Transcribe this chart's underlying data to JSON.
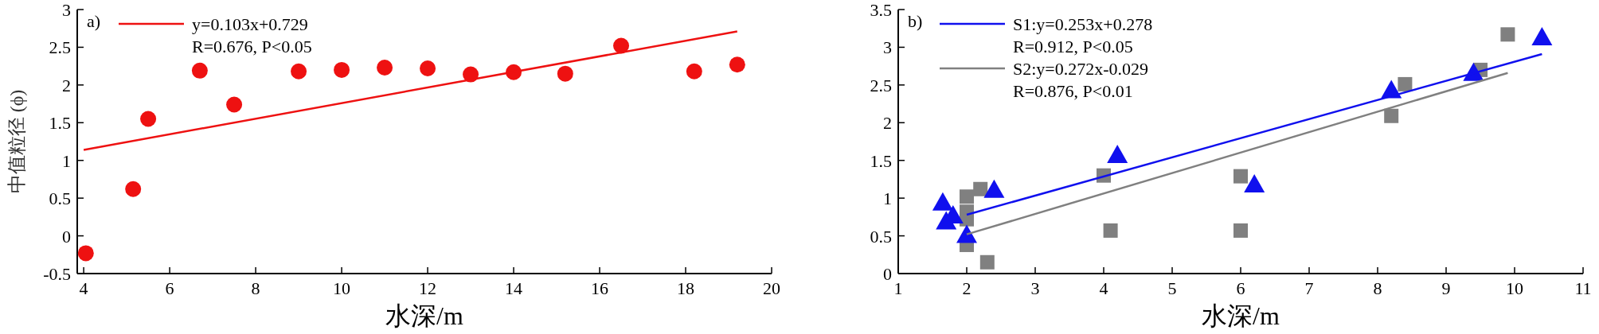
{
  "chart_data": [
    {
      "type": "scatter",
      "title": "a)",
      "xlabel": "水深/m",
      "ylabel": "中值粒径 (ϕ)",
      "xlim": [
        3.85,
        20
      ],
      "ylim": [
        -0.5,
        3
      ],
      "xticks": [
        4,
        6,
        8,
        10,
        12,
        14,
        16,
        18,
        20
      ],
      "yticks": [
        -0.5,
        0,
        0.5,
        1,
        1.5,
        2,
        2.5,
        3
      ],
      "legend": "top left",
      "annotations": [
        "R=0.676, P<0.05"
      ],
      "series": [
        {
          "type": "scatter",
          "marker": "circle",
          "color": "#ee1111",
          "x": [
            4.05,
            5.15,
            5.5,
            6.7,
            7.5,
            9,
            10,
            11,
            12,
            13,
            14,
            15.2,
            16.5,
            18.2,
            19.2
          ],
          "values": [
            -0.23,
            0.62,
            1.55,
            2.19,
            1.74,
            2.18,
            2.2,
            2.23,
            2.22,
            2.14,
            2.17,
            2.15,
            2.52,
            2.18,
            2.27
          ]
        },
        {
          "type": "line",
          "name": "y=0.103x+0.729",
          "color": "#ee1111",
          "x": [
            4,
            19.2
          ],
          "values": [
            1.14,
            2.71
          ]
        }
      ]
    },
    {
      "type": "scatter",
      "title": "b)",
      "xlabel": "水深/m",
      "xlim": [
        1,
        11
      ],
      "ylim": [
        0,
        3.5
      ],
      "xticks": [
        1,
        2,
        3,
        4,
        5,
        6,
        7,
        8,
        9,
        10,
        11
      ],
      "yticks": [
        0,
        0.5,
        1,
        1.5,
        2,
        2.5,
        3,
        3.5
      ],
      "legend": "top left",
      "annotations": [
        "R=0.912, P<0.05",
        "R=0.876, P<0.01"
      ],
      "series": [
        {
          "type": "line",
          "name": "S1:y=0.253x+0.278",
          "color": "#1010ee",
          "x": [
            2,
            10.4
          ],
          "values": [
            0.78,
            2.91
          ]
        },
        {
          "type": "line",
          "name": "S2:y=0.272x-0.029",
          "color": "#808080",
          "x": [
            2,
            9.9
          ],
          "values": [
            0.52,
            2.66
          ]
        },
        {
          "type": "scatter",
          "marker": "square",
          "color": "#808080",
          "x": [
            2.0,
            2.0,
            2.0,
            2.0,
            2.2,
            2.3,
            4.0,
            4.1,
            6.0,
            6.0,
            8.2,
            8.4,
            9.5,
            9.9
          ],
          "values": [
            1.02,
            0.82,
            0.72,
            0.38,
            1.12,
            0.15,
            1.3,
            0.57,
            1.29,
            0.57,
            2.09,
            2.51,
            2.7,
            3.17
          ]
        },
        {
          "type": "scatter",
          "marker": "triangle",
          "color": "#1010ee",
          "x": [
            1.65,
            1.7,
            1.8,
            2.0,
            2.4,
            4.2,
            6.2,
            8.2,
            9.4,
            10.4
          ],
          "values": [
            0.93,
            0.68,
            0.76,
            0.5,
            1.1,
            1.56,
            1.17,
            2.42,
            2.65,
            3.12
          ]
        }
      ]
    }
  ]
}
